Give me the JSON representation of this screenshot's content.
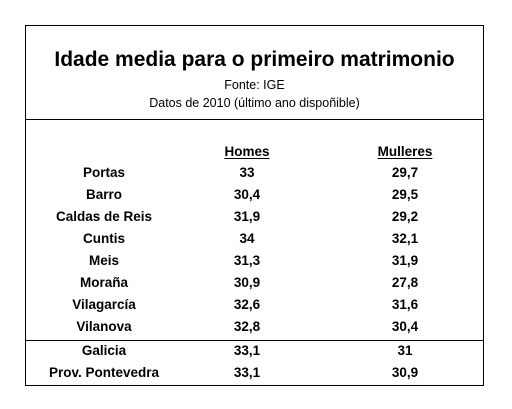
{
  "title": "Idade media para o primeiro matrimonio",
  "source": "Fonte: IGE",
  "dates": "Datos de 2010 (último ano dispoñible)",
  "columns": {
    "homes": "Homes",
    "mulleres": "Mulleres"
  },
  "rows": [
    {
      "name": "Portas",
      "homes": "33",
      "mulleres": "29,7"
    },
    {
      "name": "Barro",
      "homes": "30,4",
      "mulleres": "29,5"
    },
    {
      "name": "Caldas de Reis",
      "homes": "31,9",
      "mulleres": "29,2"
    },
    {
      "name": "Cuntis",
      "homes": "34",
      "mulleres": "32,1"
    },
    {
      "name": "Meis",
      "homes": "31,3",
      "mulleres": "31,9"
    },
    {
      "name": "Moraña",
      "homes": "30,9",
      "mulleres": "27,8"
    },
    {
      "name": "Vilagarcía",
      "homes": "32,6",
      "mulleres": "31,6"
    },
    {
      "name": "Vilanova",
      "homes": "32,8",
      "mulleres": "30,4"
    }
  ],
  "totals": [
    {
      "name": "Galicia",
      "homes": "33,1",
      "mulleres": "31"
    },
    {
      "name": "Prov. Pontevedra",
      "homes": "33,1",
      "mulleres": "30,9"
    }
  ]
}
